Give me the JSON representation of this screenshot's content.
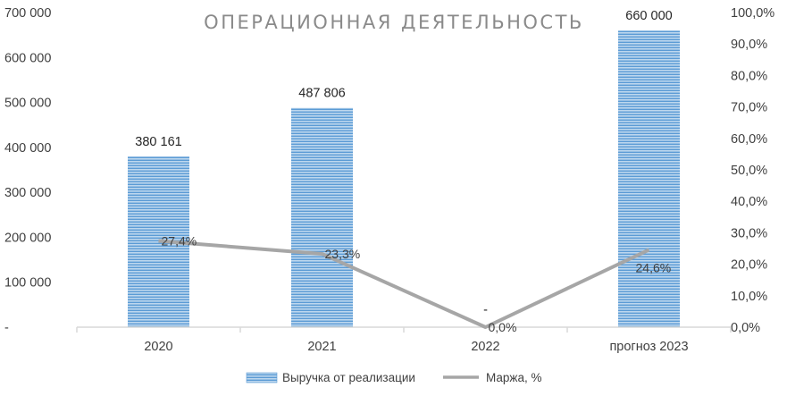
{
  "chart_data": {
    "type": "bar",
    "title": "ОПЕРАЦИОННАЯ ДЕЯТЕЛЬНОСТЬ",
    "categories": [
      "2020",
      "2021",
      "2022",
      "прогноз 2023"
    ],
    "series": [
      {
        "name": "Выручка от реализации",
        "type": "bar",
        "axis": "left",
        "values": [
          380161,
          487806,
          0,
          660000
        ],
        "labels": [
          "380 161",
          "487 806",
          "-",
          "660 000"
        ],
        "color": "#9dc3e6"
      },
      {
        "name": "Маржа, %",
        "type": "line",
        "axis": "right",
        "values": [
          27.4,
          23.3,
          0.0,
          24.6
        ],
        "labels": [
          "27,4%",
          "23,3%",
          "0,0%",
          "24,6%"
        ],
        "color": "#a6a6a6"
      }
    ],
    "y_left": {
      "min": 0,
      "max": 700000,
      "ticks": [
        0,
        100000,
        200000,
        300000,
        400000,
        500000,
        600000,
        700000
      ],
      "tick_labels": [
        "-",
        "100 000",
        "200 000",
        "300 000",
        "400 000",
        "500 000",
        "600 000",
        "700 000"
      ]
    },
    "y_right": {
      "min": 0,
      "max": 100,
      "ticks": [
        0,
        10,
        20,
        30,
        40,
        50,
        60,
        70,
        80,
        90,
        100
      ],
      "tick_labels": [
        "0,0%",
        "10,0%",
        "20,0%",
        "30,0%",
        "40,0%",
        "50,0%",
        "60,0%",
        "70,0%",
        "80,0%",
        "90,0%",
        "100,0%"
      ]
    },
    "grid": false,
    "legend": "bottom"
  }
}
